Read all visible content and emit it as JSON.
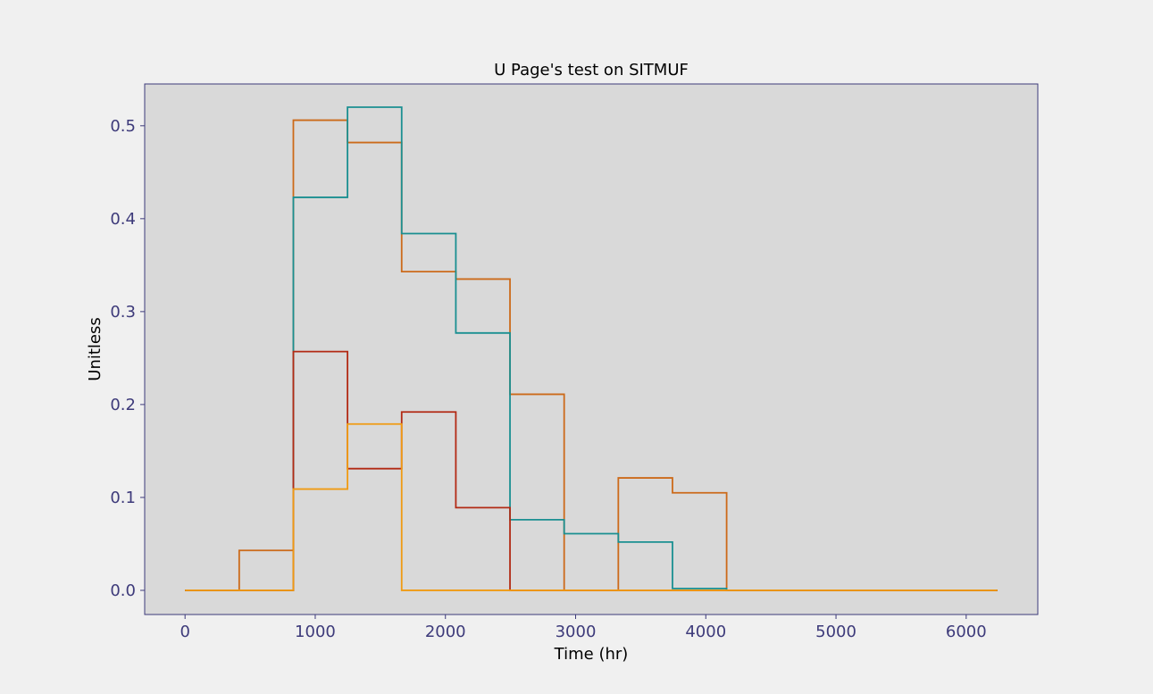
{
  "chart_data": {
    "type": "line",
    "step": "post",
    "title": "U Page's test on SITMUF",
    "xlabel": "Time (hr)",
    "ylabel": "Unitless",
    "xlim": [
      -310,
      6550
    ],
    "ylim": [
      -0.026,
      0.545
    ],
    "xticks": [
      0,
      1000,
      2000,
      3000,
      4000,
      5000,
      6000
    ],
    "yticks": [
      0.0,
      0.1,
      0.2,
      0.3,
      0.4,
      0.5
    ],
    "xtick_labels": [
      "0",
      "1000",
      "2000",
      "3000",
      "4000",
      "5000",
      "6000"
    ],
    "ytick_labels": [
      "0.0",
      "0.1",
      "0.2",
      "0.3",
      "0.4",
      "0.5"
    ],
    "grid": false,
    "legend": "none",
    "colors": {
      "background": "#f0f0f0",
      "plot_area": "#d9d9d9",
      "spine": "#3d3a7a",
      "tick_label": "#3d3a7a",
      "title": "#000000"
    },
    "bin_edges": [
      0,
      416,
      832,
      1248,
      1664,
      2080,
      2496,
      2912,
      3328,
      3744,
      4160,
      4576,
      4992,
      5408,
      5824,
      6240
    ],
    "series": [
      {
        "color": "#cc6a1a",
        "values": [
          0,
          0.043,
          0.506,
          0.482,
          0.343,
          0.335,
          0.211,
          0,
          0.121,
          0.105,
          0,
          0,
          0,
          0,
          0
        ]
      },
      {
        "color": "#1a8f91",
        "values": [
          0,
          0,
          0.423,
          0.52,
          0.384,
          0.277,
          0.076,
          0.061,
          0.052,
          0.002,
          0,
          0,
          0,
          0,
          0
        ]
      },
      {
        "color": "#b22a14",
        "values": [
          0,
          0,
          0.257,
          0.131,
          0.192,
          0.089,
          0,
          0,
          0,
          0,
          0,
          0,
          0,
          0,
          0
        ]
      },
      {
        "color": "#f09a12",
        "values": [
          0,
          0,
          0.109,
          0.179,
          0,
          0,
          0,
          0,
          0,
          0,
          0,
          0,
          0,
          0,
          0
        ]
      }
    ]
  }
}
